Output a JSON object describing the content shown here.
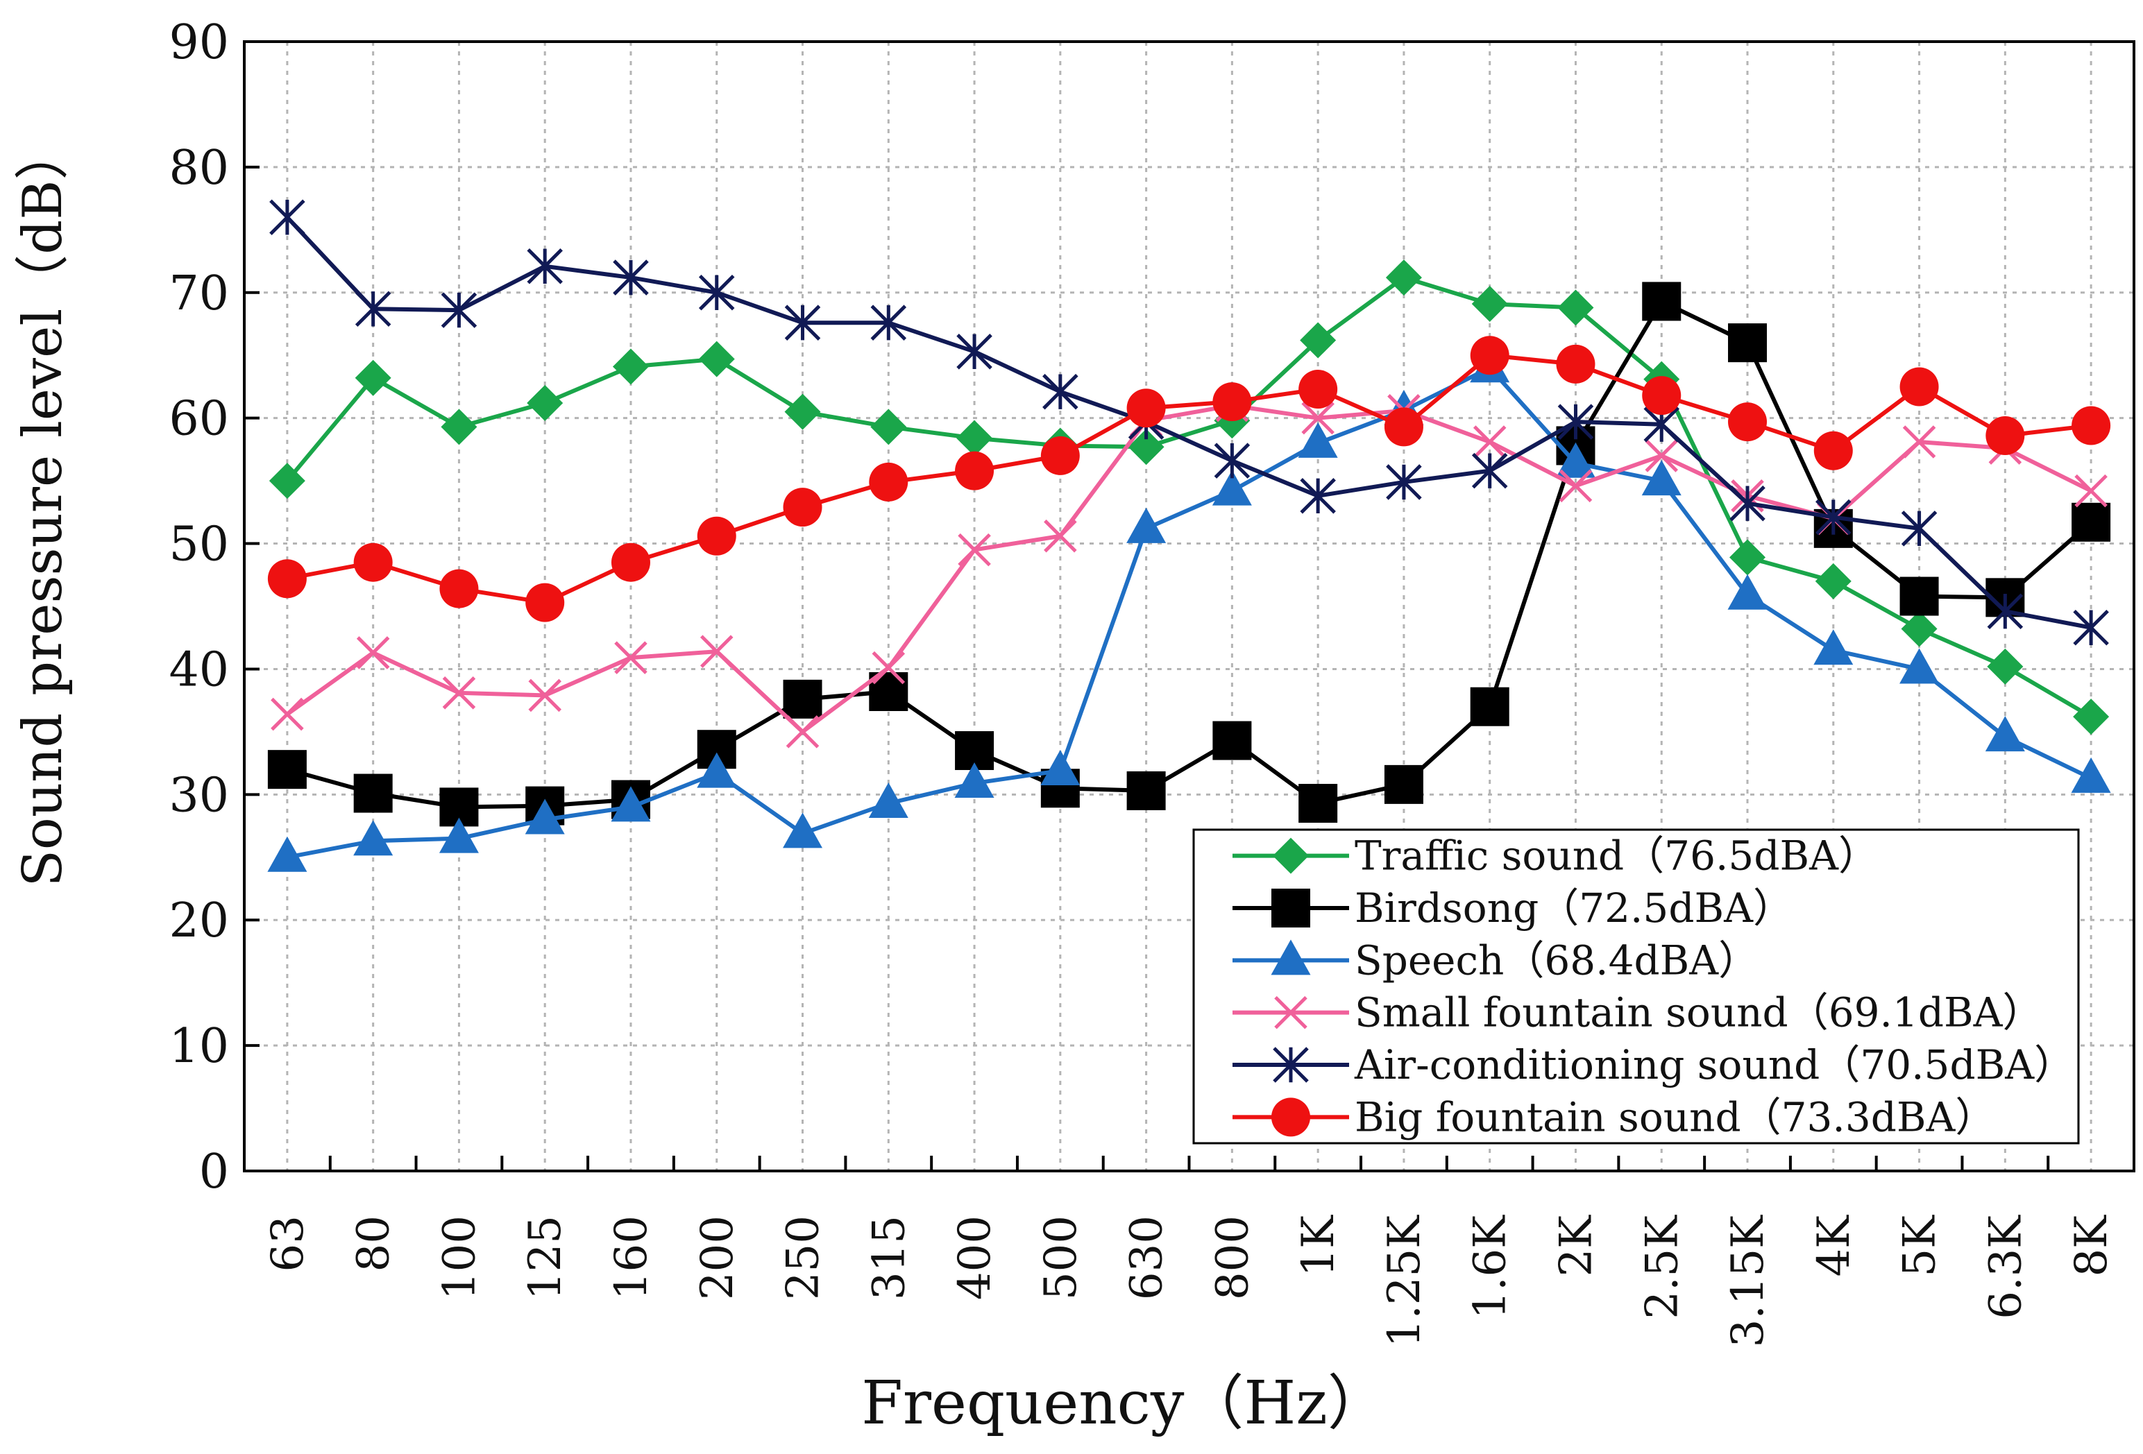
{
  "chart_data": {
    "type": "line",
    "title": "",
    "xlabel": "Frequency（Hz）",
    "ylabel": "Sound pressure level（dB）",
    "ylim": [
      0,
      90
    ],
    "yticks": [
      "0",
      "10",
      "20",
      "30",
      "40",
      "50",
      "60",
      "70",
      "80",
      "90"
    ],
    "categories": [
      "63",
      "80",
      "100",
      "125",
      "160",
      "200",
      "250",
      "315",
      "400",
      "500",
      "630",
      "800",
      "1K",
      "1.25K",
      "1.6K",
      "2K",
      "2.5K",
      "3.15K",
      "4K",
      "5K",
      "6.3K",
      "8K"
    ],
    "grid": true,
    "legend_position": "bottom-right",
    "series": [
      {
        "name": "Traffic sound（76.5dBA）",
        "color": "#1aa64a",
        "marker": "diamond",
        "values": [
          55.0,
          63.2,
          59.3,
          61.2,
          64.1,
          64.7,
          60.5,
          59.3,
          58.4,
          57.8,
          57.7,
          59.8,
          66.2,
          71.2,
          69.1,
          68.8,
          63.1,
          48.9,
          47.0,
          43.2,
          40.2,
          36.2
        ]
      },
      {
        "name": "Birdsong（72.5dBA）",
        "color": "#000000",
        "marker": "square",
        "values": [
          32.0,
          30.1,
          29.0,
          29.1,
          29.6,
          33.6,
          37.6,
          38.2,
          33.5,
          30.5,
          30.3,
          34.3,
          29.3,
          30.8,
          37.0,
          57.8,
          69.3,
          66.0,
          51.2,
          45.8,
          45.7,
          51.7
        ]
      },
      {
        "name": "Speech（68.4dBA）",
        "color": "#1f6fc4",
        "marker": "triangle",
        "values": [
          25.0,
          26.3,
          26.5,
          28.0,
          29.0,
          31.7,
          26.9,
          29.3,
          30.9,
          31.9,
          51.2,
          54.2,
          58.0,
          60.6,
          64.0,
          56.4,
          55.0,
          45.9,
          41.5,
          40.0,
          34.6,
          31.3
        ]
      },
      {
        "name": "Small fountain sound（69.1dBA）",
        "color": "#f0609a",
        "marker": "x",
        "values": [
          36.4,
          41.3,
          38.1,
          37.9,
          40.9,
          41.4,
          35.0,
          40.1,
          49.5,
          50.6,
          59.8,
          61.0,
          60.0,
          60.6,
          58.1,
          54.6,
          57.0,
          53.8,
          52.0,
          58.1,
          57.6,
          54.2
        ]
      },
      {
        "name": "Air-conditioning sound（70.5dBA）",
        "color": "#111a55",
        "marker": "star",
        "values": [
          76.0,
          68.7,
          68.6,
          72.1,
          71.2,
          70.0,
          67.6,
          67.6,
          65.3,
          62.1,
          59.7,
          56.6,
          53.8,
          54.9,
          55.8,
          59.7,
          59.5,
          53.2,
          52.1,
          51.2,
          44.6,
          43.3
        ]
      },
      {
        "name": "Big fountain sound（73.3dBA）",
        "color": "#ee1111",
        "marker": "circle",
        "values": [
          47.2,
          48.5,
          46.4,
          45.3,
          48.5,
          50.6,
          52.9,
          54.9,
          55.8,
          57.0,
          60.8,
          61.3,
          62.3,
          59.3,
          65.0,
          64.3,
          61.8,
          59.7,
          57.4,
          62.5,
          58.6,
          59.4
        ]
      }
    ]
  }
}
